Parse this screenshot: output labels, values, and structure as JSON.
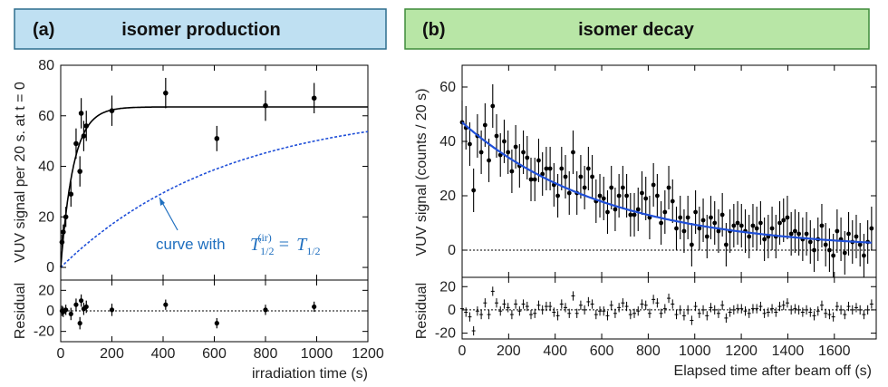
{
  "chart_data": [
    {
      "type": "scatter",
      "panel_label": "(a)",
      "title": "isomer production",
      "title_color": "#bfe0f2",
      "title_border": "#2e6e8e",
      "xlabel": "irradiation time (s)",
      "ylabel": "VUV signal per 20 s. at t = 0",
      "residual_ylabel": "Residual",
      "xlim": [
        0,
        1200
      ],
      "ylim": [
        -5,
        80
      ],
      "residual_ylim": [
        -30,
        30
      ],
      "xticks": [
        "0",
        "200",
        "400",
        "600",
        "800",
        "1000",
        "1200"
      ],
      "yticks": [
        "0",
        "20",
        "40",
        "60",
        "80"
      ],
      "residual_yticks": [
        "20",
        "0",
        "-20"
      ],
      "points": [
        {
          "x": 5,
          "y": 10,
          "err": 3
        },
        {
          "x": 10,
          "y": 14,
          "err": 3
        },
        {
          "x": 20,
          "y": 20,
          "err": 4
        },
        {
          "x": 40,
          "y": 29,
          "err": 5
        },
        {
          "x": 60,
          "y": 49,
          "err": 6
        },
        {
          "x": 75,
          "y": 38,
          "err": 6
        },
        {
          "x": 80,
          "y": 61,
          "err": 6
        },
        {
          "x": 90,
          "y": 52,
          "err": 6
        },
        {
          "x": 100,
          "y": 56,
          "err": 6
        },
        {
          "x": 200,
          "y": 62,
          "err": 6
        },
        {
          "x": 410,
          "y": 69,
          "err": 6
        },
        {
          "x": 610,
          "y": 51,
          "err": 5
        },
        {
          "x": 800,
          "y": 64,
          "err": 6
        },
        {
          "x": 990,
          "y": 67,
          "err": 6
        }
      ],
      "residuals": [
        {
          "x": 5,
          "y": 0,
          "err": 5
        },
        {
          "x": 10,
          "y": -1,
          "err": 5
        },
        {
          "x": 20,
          "y": 1,
          "err": 5
        },
        {
          "x": 40,
          "y": -3,
          "err": 6
        },
        {
          "x": 60,
          "y": 6,
          "err": 6
        },
        {
          "x": 75,
          "y": -12,
          "err": 6
        },
        {
          "x": 80,
          "y": 10,
          "err": 6
        },
        {
          "x": 90,
          "y": 2,
          "err": 6
        },
        {
          "x": 100,
          "y": 4,
          "err": 6
        },
        {
          "x": 200,
          "y": 1,
          "err": 6
        },
        {
          "x": 410,
          "y": 6,
          "err": 5
        },
        {
          "x": 610,
          "y": -12,
          "err": 5
        },
        {
          "x": 800,
          "y": 1,
          "err": 5
        },
        {
          "x": 990,
          "y": 4,
          "err": 5
        }
      ],
      "fit_curve": {
        "name": "fit",
        "amplitude": 63.5,
        "tau": 50,
        "color": "#000000"
      },
      "dashed_curve": {
        "name": "curve with T1/2(ir) = T1/2",
        "amplitude": 63.5,
        "tau": 640,
        "color": "#1f4fd8"
      },
      "annotation": {
        "prefix": "curve with",
        "lhs_base": "T",
        "lhs_sub": "1/2",
        "lhs_sup": "(ir)",
        "equals": "=",
        "rhs_base": "T",
        "rhs_sub": "1/2",
        "color": "#1f6fbf"
      }
    },
    {
      "type": "scatter",
      "panel_label": "(b)",
      "title": "isomer decay",
      "title_color": "#b8e6a6",
      "title_border": "#3e8c3a",
      "xlabel": "Elapsed time after beam off (s)",
      "ylabel": "VUV signal (counts / 20 s)",
      "residual_ylabel": "Residual",
      "xlim": [
        0,
        1780
      ],
      "ylim": [
        -10,
        68
      ],
      "residual_ylim": [
        -25,
        28
      ],
      "xticks": [
        "0",
        "200",
        "400",
        "600",
        "800",
        "1000",
        "1200",
        "1400",
        "1600"
      ],
      "yticks": [
        "0",
        "20",
        "40",
        "60"
      ],
      "residual_yticks": [
        "20",
        "0",
        "-20"
      ],
      "fit_curve": {
        "name": "exponential fit",
        "a0": 47,
        "tau": 620,
        "offset": 0,
        "color": "#1f4fd8"
      },
      "points_y": [
        47,
        45,
        39,
        22,
        42,
        36,
        46,
        33,
        53,
        42,
        35,
        40,
        36,
        29,
        38,
        31,
        36,
        34,
        26,
        26,
        33,
        28,
        30,
        30,
        24,
        20,
        30,
        27,
        21,
        36,
        21,
        27,
        23,
        30,
        27,
        18,
        20,
        19,
        14,
        23,
        15,
        20,
        23,
        20,
        13,
        13,
        15,
        21,
        19,
        12,
        24,
        20,
        10,
        14,
        23,
        18,
        8,
        12,
        7,
        12,
        2,
        14,
        8,
        11,
        5,
        12,
        10,
        7,
        13,
        2,
        7,
        9,
        10,
        9,
        7,
        5,
        9,
        8,
        10,
        4,
        5,
        8,
        5,
        10,
        11,
        12,
        6,
        7,
        6,
        4,
        6,
        3,
        0,
        4,
        9,
        2,
        0,
        -2,
        7,
        4,
        -1,
        6,
        3,
        5,
        2,
        -2,
        3,
        8
      ],
      "points_err": 8,
      "residuals_y": [
        1,
        -2,
        -6,
        -18,
        -1,
        -4,
        6,
        -4,
        16,
        6,
        -1,
        5,
        2,
        -4,
        5,
        -1,
        5,
        3,
        -4,
        -3,
        4,
        0,
        3,
        3,
        -2,
        -5,
        5,
        2,
        -3,
        12,
        -3,
        4,
        0,
        7,
        5,
        -4,
        -1,
        -1,
        -5,
        4,
        -3,
        2,
        6,
        3,
        -4,
        -3,
        -1,
        5,
        4,
        -3,
        9,
        6,
        -3,
        1,
        10,
        5,
        -4,
        0,
        -5,
        0,
        -9,
        3,
        -3,
        0,
        -5,
        2,
        0,
        -3,
        4,
        -7,
        -2,
        0,
        1,
        1,
        -1,
        -3,
        1,
        1,
        3,
        -3,
        -2,
        1,
        -2,
        3,
        4,
        6,
        0,
        1,
        0,
        -2,
        0,
        -2,
        -5,
        -1,
        4,
        -3,
        -4,
        -6,
        3,
        0,
        -4,
        3,
        0,
        2,
        0,
        -4,
        0,
        5
      ]
    }
  ]
}
